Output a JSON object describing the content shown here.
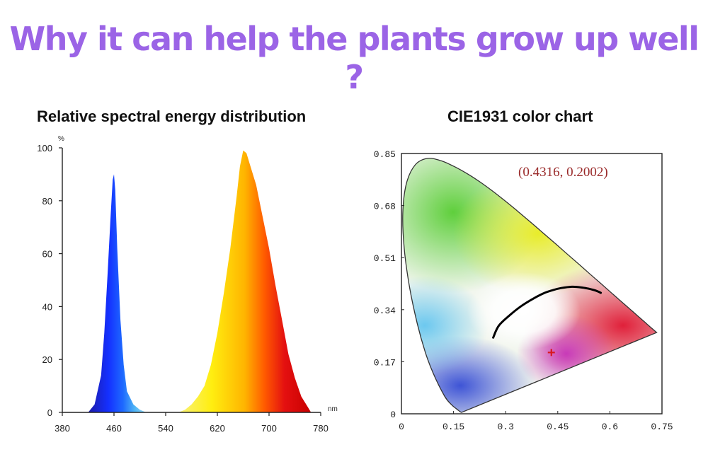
{
  "headline": "Why it can help the plants grow up well ?",
  "chart_data": [
    {
      "type": "area",
      "title": "Relative spectral energy distribution",
      "y_unit": "%",
      "x_unit": "nm",
      "xlim": [
        380,
        780
      ],
      "ylim": [
        0,
        100
      ],
      "x_ticks": [
        "380",
        "460",
        "540",
        "620",
        "700",
        "780"
      ],
      "y_ticks": [
        "0",
        "20",
        "40",
        "60",
        "80",
        "100"
      ],
      "grid": false,
      "series": [
        {
          "x": [
            420,
            430,
            440,
            445,
            450,
            455,
            458,
            460,
            462,
            465,
            470,
            475,
            480,
            490,
            500,
            510
          ],
          "y": [
            0,
            3,
            14,
            30,
            52,
            75,
            88,
            90,
            84,
            62,
            35,
            18,
            8,
            3,
            1,
            0
          ]
        },
        {
          "x": [
            560,
            570,
            580,
            590,
            600,
            610,
            620,
            630,
            640,
            650,
            655,
            660,
            665,
            670,
            680,
            690,
            700,
            710,
            720,
            730,
            740,
            750,
            760,
            765
          ],
          "y": [
            0,
            1,
            3,
            6,
            10,
            18,
            30,
            45,
            62,
            82,
            93,
            99,
            98,
            94,
            86,
            74,
            62,
            48,
            35,
            22,
            13,
            6,
            2,
            0
          ]
        }
      ]
    },
    {
      "type": "scatter",
      "title": "CIE1931 color chart",
      "xlim": [
        0,
        0.75
      ],
      "ylim": [
        0,
        0.85
      ],
      "x_ticks": [
        "0",
        "0.15",
        "0.3",
        "0.45",
        "0.6",
        "0.75"
      ],
      "y_ticks": [
        "0",
        "0.17",
        "0.34",
        "0.51",
        "0.68",
        "0.85"
      ],
      "grid": false,
      "annotation": "(0.4316, 0.2002)",
      "point": {
        "x": 0.4316,
        "y": 0.2002
      },
      "locus": {
        "x": [
          0.1741,
          0.1738,
          0.1721,
          0.1689,
          0.1644,
          0.1566,
          0.144,
          0.1241,
          0.0913,
          0.0687,
          0.0454,
          0.0235,
          0.0082,
          0.0039,
          0.0139,
          0.0389,
          0.0743,
          0.1142,
          0.1547,
          0.1929,
          0.2296,
          0.2658,
          0.3016,
          0.3373,
          0.3731,
          0.4087,
          0.4441,
          0.4788,
          0.5125,
          0.5448,
          0.5752,
          0.6029,
          0.627,
          0.6482,
          0.6658,
          0.6801,
          0.6915,
          0.7006,
          0.7079,
          0.714,
          0.7347
        ],
        "y": [
          0.005,
          0.0049,
          0.0048,
          0.0069,
          0.0109,
          0.0177,
          0.0297,
          0.0578,
          0.1327,
          0.2007,
          0.295,
          0.4127,
          0.5384,
          0.6548,
          0.7502,
          0.812,
          0.8338,
          0.8262,
          0.8059,
          0.7816,
          0.7543,
          0.7243,
          0.6923,
          0.6589,
          0.6245,
          0.5896,
          0.5547,
          0.5202,
          0.4866,
          0.4544,
          0.4242,
          0.3965,
          0.3725,
          0.3514,
          0.334,
          0.3197,
          0.3083,
          0.2993,
          0.292,
          0.2859,
          0.2653
        ]
      },
      "planckian": {
        "x": [
          0.2641,
          0.2806,
          0.3135,
          0.3447,
          0.3805,
          0.4101,
          0.4369,
          0.4599,
          0.4903,
          0.5162,
          0.5386,
          0.5586,
          0.574
        ],
        "y": [
          0.2487,
          0.2883,
          0.3236,
          0.3516,
          0.3768,
          0.3938,
          0.4041,
          0.4106,
          0.4149,
          0.4131,
          0.4085,
          0.4025,
          0.395
        ]
      }
    }
  ]
}
